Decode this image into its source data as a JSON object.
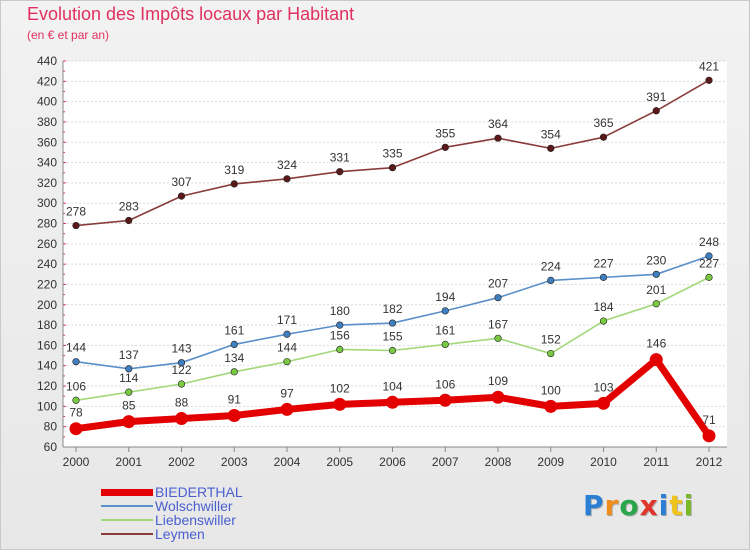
{
  "chart_data": {
    "type": "line",
    "title": "Evolution des Impôts locaux par Habitant",
    "subtitle": "(en € et par an)",
    "xlabel": "",
    "ylabel": "",
    "ylim": [
      60,
      440
    ],
    "ytick_step": 20,
    "grid": true,
    "legend_position": "bottom-left",
    "categories": [
      "2000",
      "2001",
      "2002",
      "2003",
      "2004",
      "2005",
      "2006",
      "2007",
      "2008",
      "2009",
      "2010",
      "2011",
      "2012"
    ],
    "series": [
      {
        "name": "BIEDERTHAL",
        "color": "#e20000",
        "emphasis": true,
        "values": [
          78,
          85,
          88,
          91,
          97,
          102,
          104,
          106,
          109,
          100,
          103,
          146,
          71
        ]
      },
      {
        "name": "Wolschwiller",
        "color": "#5a8fca",
        "point_color": "#3f7fbf",
        "values": [
          144,
          137,
          143,
          161,
          171,
          180,
          182,
          194,
          207,
          224,
          227,
          230,
          248
        ]
      },
      {
        "name": "Liebenswiller",
        "color": "#a2d87a",
        "point_color": "#7ac943",
        "values": [
          106,
          114,
          122,
          134,
          144,
          156,
          155,
          161,
          167,
          152,
          184,
          201,
          227
        ]
      },
      {
        "name": "Leymen",
        "color": "#8a3c3c",
        "point_color": "#5a1818",
        "values": [
          278,
          283,
          307,
          319,
          324,
          331,
          335,
          355,
          364,
          354,
          365,
          391,
          421
        ]
      }
    ]
  },
  "logo": {
    "text": "Proxiti",
    "letter_colors": [
      "#2a7fd4",
      "#f08c1c",
      "#2aa64a",
      "#e0352b",
      "#2a7fd4",
      "#f0c21c",
      "#7ab828"
    ]
  }
}
